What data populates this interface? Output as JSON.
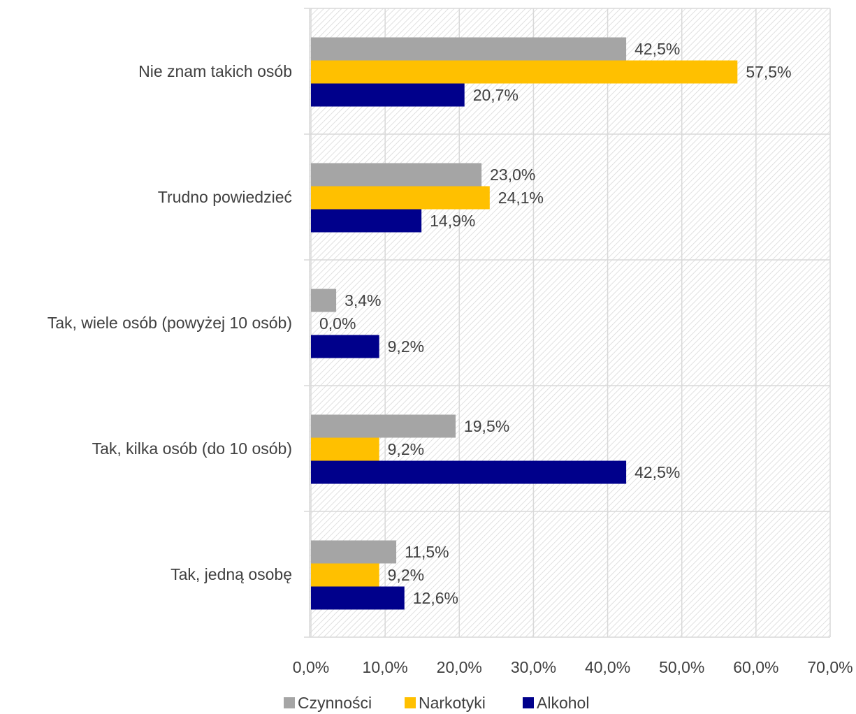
{
  "chart_data": {
    "type": "bar",
    "orientation": "horizontal",
    "title": "",
    "xlabel": "",
    "ylabel": "",
    "categories": [
      "Nie znam takich osób",
      "Trudno powiedzieć",
      "Tak, wiele osób (powyżej 10 osób)",
      "Tak, kilka osób (do 10 osób)",
      "Tak, jedną osobę"
    ],
    "series": [
      {
        "name": "Czynności",
        "color": "#a5a5a5",
        "values": [
          42.5,
          23.0,
          3.4,
          19.5,
          11.5
        ]
      },
      {
        "name": "Narkotyki",
        "color": "#ffc000",
        "values": [
          57.5,
          24.1,
          0.0,
          9.2,
          9.2
        ]
      },
      {
        "name": "Alkohol",
        "color": "#00008b",
        "values": [
          20.7,
          14.9,
          9.2,
          42.5,
          12.6
        ]
      }
    ],
    "xlim": [
      0,
      70
    ],
    "xticks": [
      "0,0%",
      "10,0%",
      "20,0%",
      "30,0%",
      "40,0%",
      "50,0%",
      "60,0%",
      "70,0%"
    ],
    "value_labels": [
      [
        "42,5%",
        "23,0%",
        "3,4%",
        "19,5%",
        "11,5%"
      ],
      [
        "57,5%",
        "24,1%",
        "0,0%",
        "9,2%",
        "9,2%"
      ],
      [
        "20,7%",
        "14,9%",
        "9,2%",
        "42,5%",
        "12,6%"
      ]
    ],
    "grid": true,
    "plot_background": "diagonal hatch",
    "legend_position": "bottom"
  }
}
